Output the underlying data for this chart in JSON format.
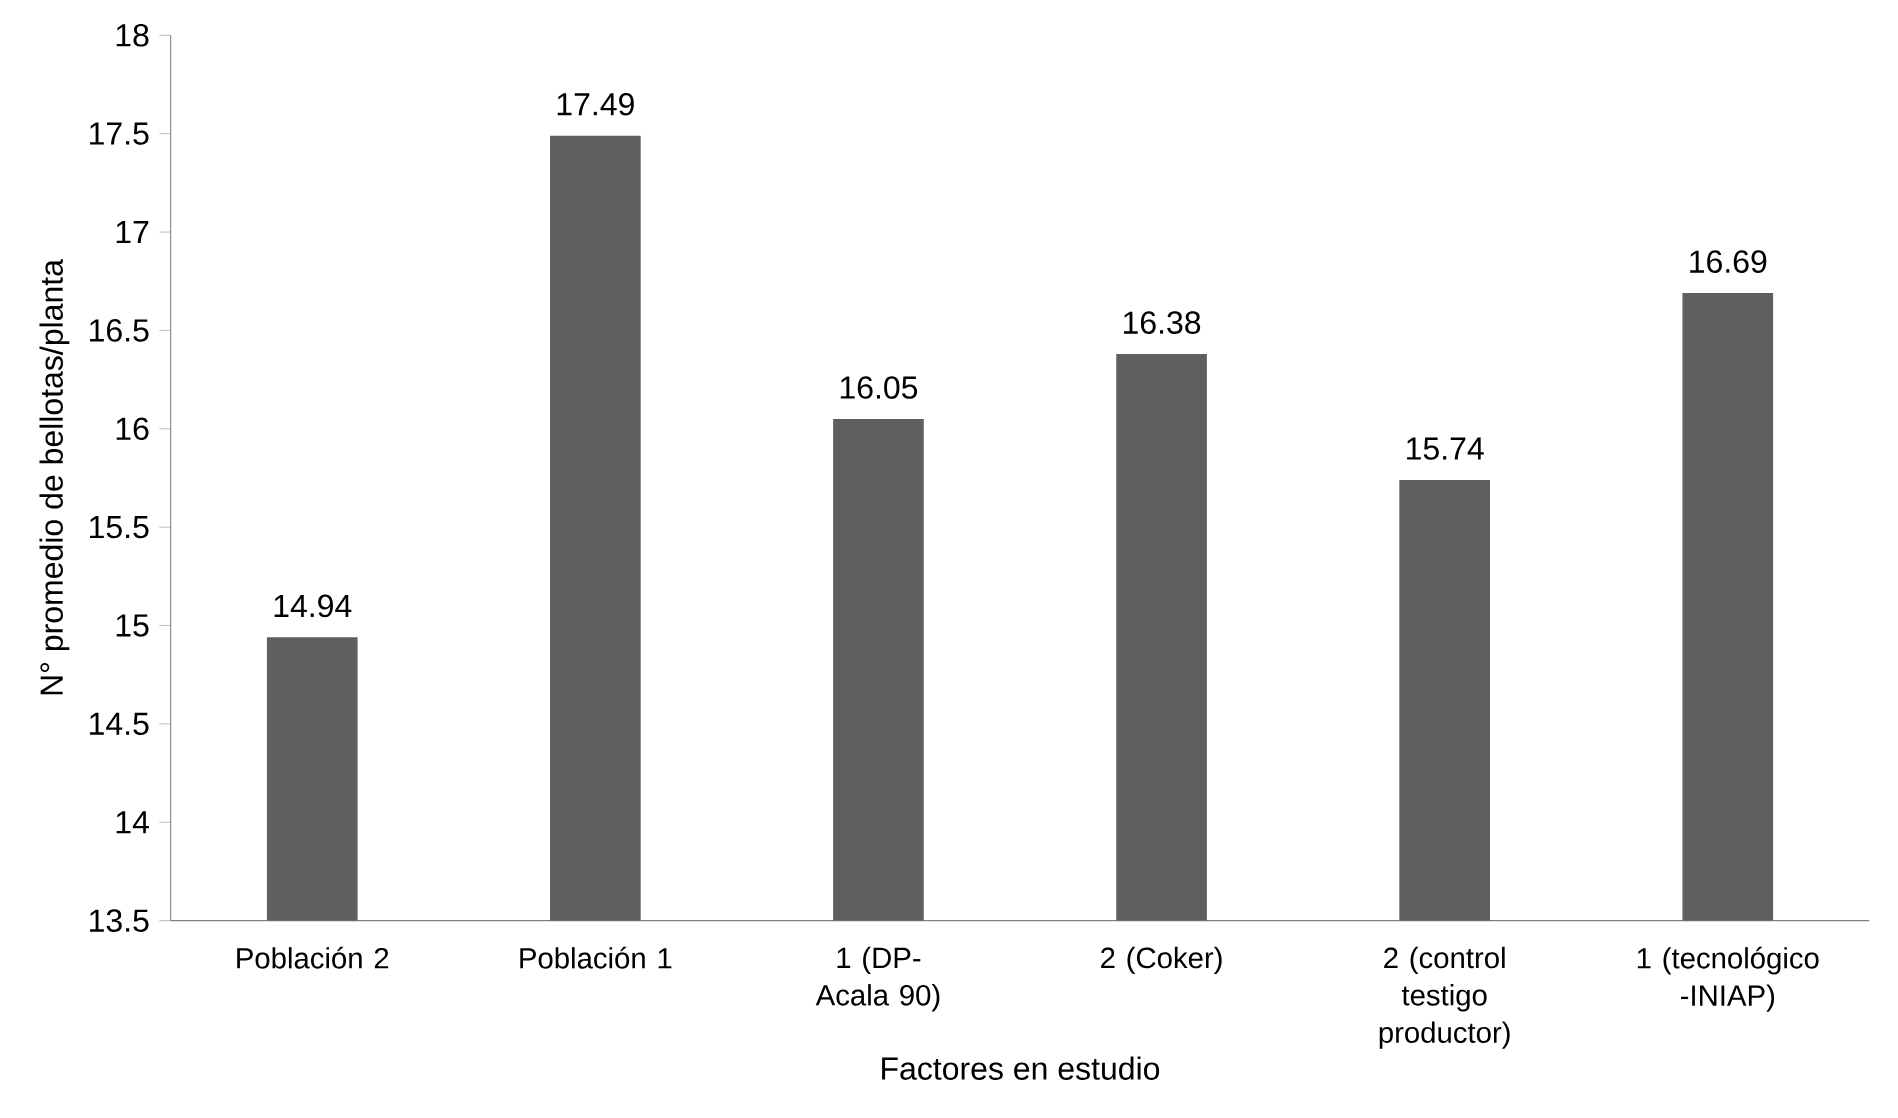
{
  "chart_data": {
    "type": "bar",
    "xlabel": "Factores en estudio",
    "ylabel": "N° promedio  de bellotas/planta",
    "categories": [
      "Población 2",
      "Población 1",
      "1 (DP-Acala 90)",
      "2 (Coker)",
      "2 (control testigo productor)",
      "1 (tecnológico -INIAP)"
    ],
    "values": [
      14.94,
      17.49,
      16.05,
      16.38,
      15.74,
      16.69
    ],
    "color": "#5f5f5f",
    "ylim": [
      13.5,
      18
    ],
    "yticks": [
      13.5,
      14,
      14.5,
      15,
      15.5,
      16,
      16.5,
      17,
      17.5,
      18
    ],
    "grid": false,
    "data_labels": true
  }
}
